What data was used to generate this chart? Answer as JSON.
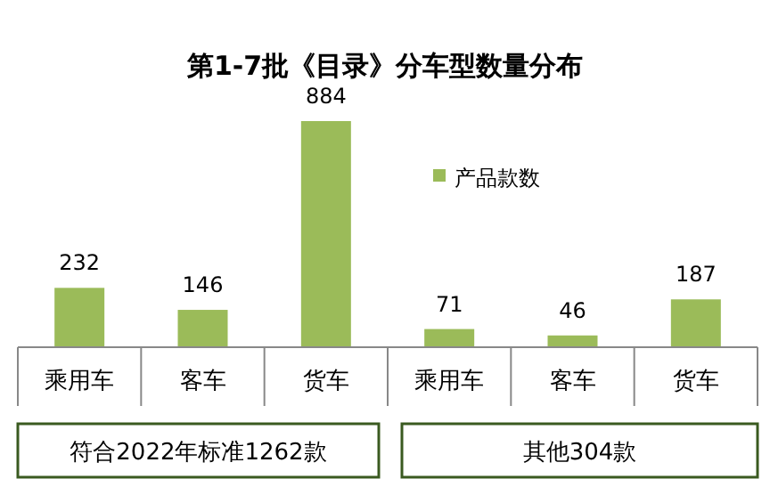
{
  "chart_data": {
    "type": "bar",
    "title": "第1-7批《目录》分车型数量分布",
    "categories": [
      "乘用车",
      "客车",
      "货车",
      "乘用车",
      "客车",
      "货车"
    ],
    "series": [
      {
        "name": "产品款数",
        "color": "#9bbb59",
        "values": [
          232,
          146,
          884,
          71,
          46,
          187
        ]
      }
    ],
    "data_labels": true,
    "legend": "right",
    "annotations": [
      "符合2022年标准1262款",
      "其他304款"
    ]
  }
}
